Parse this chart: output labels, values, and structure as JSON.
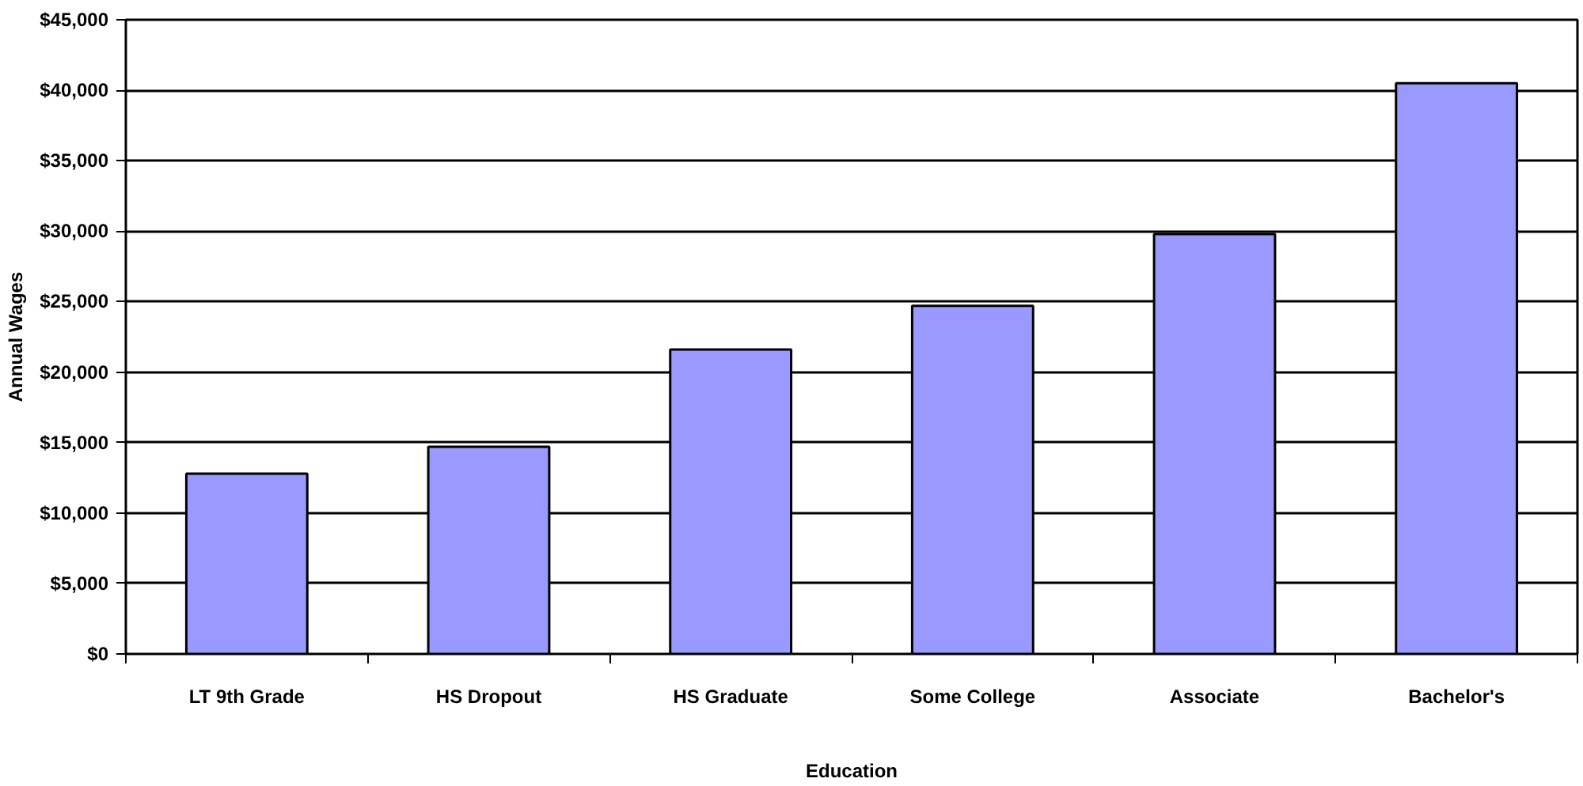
{
  "chart_data": {
    "type": "bar",
    "xlabel": "Education",
    "ylabel": "Annual Wages",
    "categories": [
      "LT 9th Grade",
      "HS Dropout",
      "HS Graduate",
      "Some College",
      "Associate",
      "Bachelor's"
    ],
    "values": [
      12800,
      14700,
      21600,
      24700,
      29800,
      40500
    ],
    "color": "#9999ff",
    "ylim": [
      0,
      45000
    ],
    "yticks": [
      {
        "value": 0,
        "label": "$0"
      },
      {
        "value": 5000,
        "label": "$5,000"
      },
      {
        "value": 10000,
        "label": "$10,000"
      },
      {
        "value": 15000,
        "label": "$15,000"
      },
      {
        "value": 20000,
        "label": "$20,000"
      },
      {
        "value": 25000,
        "label": "$25,000"
      },
      {
        "value": 30000,
        "label": "$30,000"
      },
      {
        "value": 35000,
        "label": "$35,000"
      },
      {
        "value": 40000,
        "label": "$40,000"
      },
      {
        "value": 45000,
        "label": "$45,000"
      }
    ],
    "grid": "y"
  }
}
